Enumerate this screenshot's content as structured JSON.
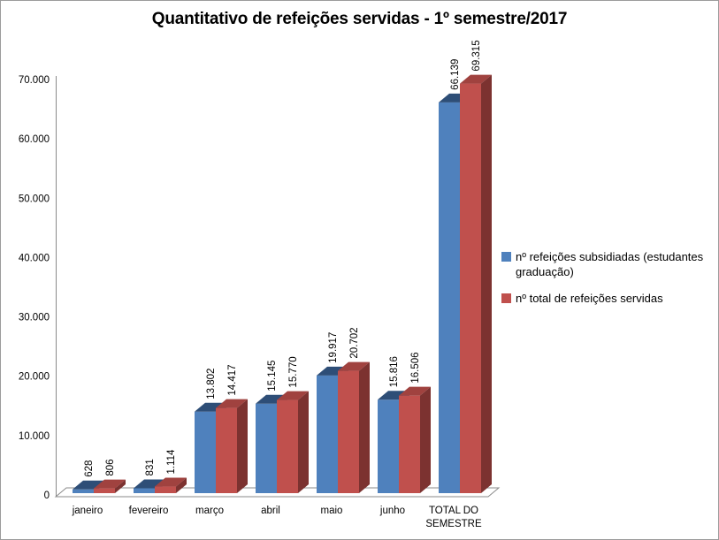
{
  "frame": {
    "border_color": "#9b9b9b",
    "background_color": "#ffffff"
  },
  "title": "Quantitativo de refeições servidas - 1º semestre/2017",
  "chart_data": {
    "type": "bar",
    "style": "3d-clustered-column",
    "title": "Quantitativo de refeições servidas - 1º semestre/2017",
    "categories": [
      "janeiro",
      "fevereiro",
      "março",
      "abril",
      "maio",
      "junho",
      "TOTAL DO SEMESTRE"
    ],
    "series": [
      {
        "name": "nº refeições subsidiadas (estudantes graduação)",
        "color": "#4F81BD",
        "color_top": "#2E4E77",
        "color_side": "#365F91",
        "values": [
          628,
          831,
          13802,
          15145,
          19917,
          15816,
          66139
        ],
        "value_labels": [
          "628",
          "831",
          "13.802",
          "15.145",
          "19.917",
          "15.816",
          "66.139"
        ]
      },
      {
        "name": "nº total de refeições servidas",
        "color": "#C0504D",
        "color_top": "#A0423F",
        "color_side": "#7C3230",
        "values": [
          806,
          1114,
          14417,
          15770,
          20702,
          16506,
          69315
        ],
        "value_labels": [
          "806",
          "1.114",
          "14.417",
          "15.770",
          "20.702",
          "16.506",
          "69.315"
        ]
      }
    ],
    "ylim": [
      0,
      70000
    ],
    "ytick_step": 10000,
    "ytick_labels": [
      "0",
      "10.000",
      "20.000",
      "30.000",
      "40.000",
      "50.000",
      "60.000",
      "70.000"
    ],
    "grid": false,
    "legend_position": "right",
    "axis_color": "#8a8a8a",
    "text_color": "#000000",
    "data_label_rotation": 90
  }
}
